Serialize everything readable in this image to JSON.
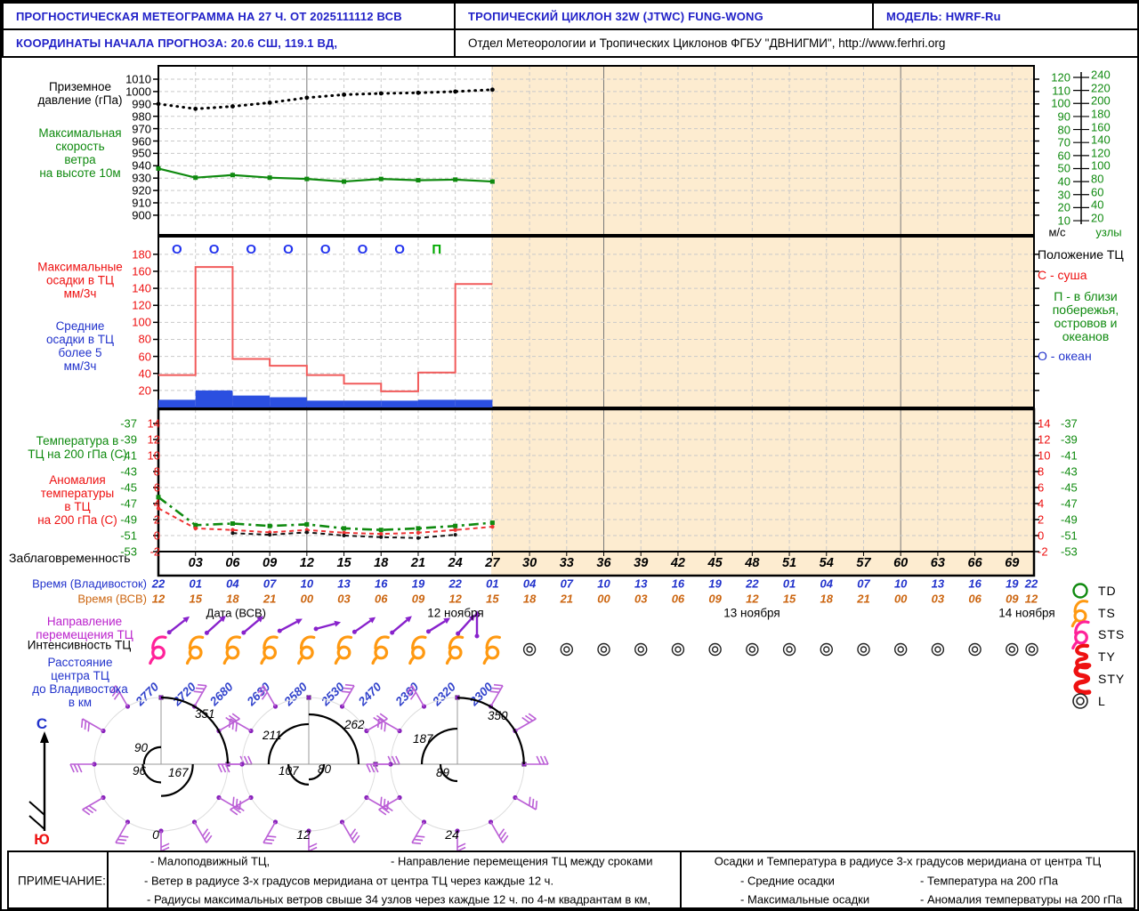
{
  "header": {
    "title": "ПРОГНОСТИЧЕСКАЯ МЕТЕОГРАММА НА 27 Ч. ОТ 2025111112 ВСВ",
    "cyclone": "ТРОПИЧЕСКИЙ ЦИКЛОН  32W (JTWC)  FUNG-WONG",
    "model": "МОДЕЛЬ:   HWRF-Ru",
    "coords": "КООРДИНАТЫ НАЧАЛА ПРОГНОЗА: 20.6  СШ,   119.1  ВД,",
    "org": "Отдел Метеорологии и Тропических Циклонов ФГБУ \"ДВНИГМИ\",  http://www.ferhri.org"
  },
  "left_labels": {
    "pressure": "Приземное\nдавление (гПа)",
    "wind": "Максимальная\nскорость\nветра\nна высоте 10м",
    "max_precip": "Максимальные\nосадки в ТЦ\nмм/3ч",
    "mean_precip": "Средние\nосадки в ТЦ\nболее 5\nмм/3ч",
    "temp": "Температура в\nТЦ на 200 гПа (С)",
    "anomaly": "Аномалия\nтемпературы\nв ТЦ\nна 200 гПа (С)",
    "lead": "Заблаговременность",
    "direction": "Направление\nперемещения ТЦ",
    "intensity": "Интенсивность ТЦ",
    "distance": "Расстояние\nцентра ТЦ\nдо Владивостока\nв км",
    "compass_north": "С",
    "compass_south": "Ю"
  },
  "right_labels": {
    "ms_unit": "м/с",
    "knots_unit": "узлы",
    "position_title": "Положение ТЦ",
    "pos_land": "С - суша",
    "pos_coast": "П - в близи\nпобережья,\nостровов и\nокеанов",
    "pos_ocean": "О - океан",
    "intensity_codes": [
      "TD",
      "TS",
      "STS",
      "TY",
      "STY",
      "L"
    ]
  },
  "timeline": {
    "lead_hours": [
      "03",
      "06",
      "09",
      "12",
      "15",
      "18",
      "21",
      "24",
      "27",
      "30",
      "33",
      "36",
      "39",
      "42",
      "45",
      "48",
      "51",
      "54",
      "57",
      "60",
      "63",
      "66",
      "69"
    ],
    "vlad_label": "Время (Владивосток)",
    "vlad_times": [
      "22",
      "01",
      "04",
      "07",
      "10",
      "13",
      "16",
      "19",
      "22",
      "01",
      "04",
      "07",
      "10",
      "13",
      "16",
      "19",
      "22",
      "01",
      "04",
      "07",
      "10",
      "13",
      "16",
      "19",
      "22"
    ],
    "utc_label": "Время (ВСВ)",
    "utc_times": [
      "12",
      "15",
      "18",
      "21",
      "00",
      "03",
      "06",
      "09",
      "12",
      "15",
      "18",
      "21",
      "00",
      "03",
      "06",
      "09",
      "12",
      "15",
      "18",
      "21",
      "00",
      "03",
      "06",
      "09",
      "12"
    ],
    "date_label": "Дата (ВСВ)",
    "dates": [
      "12 ноября",
      "13 ноября",
      "14 ноября"
    ]
  },
  "chart_data": [
    {
      "type": "line",
      "title": "Приземное давление и максимальная скорость ветра на высоте 10 м",
      "x_hours": [
        0,
        3,
        6,
        9,
        12,
        15,
        18,
        21,
        24,
        27
      ],
      "series": [
        {
          "name": "Приземное давление (гПа)",
          "color": "#000000",
          "style": "dotted",
          "values": [
            990,
            986,
            988,
            991,
            995,
            997.5,
            998.5,
            999,
            1000,
            1001.5
          ]
        },
        {
          "name": "Максимальная скорость ветра на высоте 10м (м/с)",
          "color": "#0f8a0f",
          "style": "solid",
          "values": [
            50,
            43,
            45,
            43,
            42,
            40,
            42,
            41,
            41.5,
            40
          ]
        }
      ],
      "pressure_ticks": [
        1010,
        1000,
        990,
        980,
        970,
        960,
        950,
        940,
        930,
        920,
        910,
        900
      ],
      "ms_ticks": [
        120,
        110,
        100,
        90,
        80,
        70,
        60,
        50,
        40,
        30,
        20,
        10
      ],
      "knot_ticks": [
        240,
        220,
        200,
        180,
        160,
        140,
        120,
        100,
        80,
        60,
        40,
        20
      ]
    },
    {
      "type": "bar",
      "title": "Осадки в ТЦ, мм/3ч",
      "interval_start_hours": [
        0,
        3,
        6,
        9,
        12,
        15,
        18,
        21,
        24
      ],
      "series": [
        {
          "name": "Максимальные осадки",
          "color": "#f15b5b",
          "style": "step",
          "values": [
            38,
            165,
            57,
            49,
            38,
            28,
            19,
            41,
            145
          ]
        },
        {
          "name": "Средние осадки",
          "color": "#2b4fe0",
          "style": "bar",
          "values": [
            9,
            20,
            14,
            12,
            8,
            8,
            8,
            9,
            9
          ]
        }
      ],
      "precip_ticks": [
        180,
        160,
        140,
        120,
        100,
        80,
        60,
        40,
        20
      ],
      "position_letters": [
        {
          "hour": 1.5,
          "letter": "О",
          "color": "#2233ee"
        },
        {
          "hour": 4.5,
          "letter": "О",
          "color": "#2233ee"
        },
        {
          "hour": 7.5,
          "letter": "О",
          "color": "#2233ee"
        },
        {
          "hour": 10.5,
          "letter": "О",
          "color": "#2233ee"
        },
        {
          "hour": 13.5,
          "letter": "О",
          "color": "#2233ee"
        },
        {
          "hour": 16.5,
          "letter": "О",
          "color": "#2233ee"
        },
        {
          "hour": 19.5,
          "letter": "О",
          "color": "#2233ee"
        },
        {
          "hour": 22.5,
          "letter": "П",
          "color": "#00aa00"
        }
      ]
    },
    {
      "type": "line",
      "title": "Температура и аномалия температуры в ТЦ на 200 гПа",
      "x_hours": [
        0,
        3,
        6,
        9,
        12,
        15,
        18,
        21,
        24,
        27
      ],
      "series": [
        {
          "name": "Температура на 200 гПа (С)",
          "color": "#0f8a0f",
          "style": "dashdot",
          "axis": "temp",
          "values": [
            -46.2,
            -49.7,
            -49.5,
            -49.8,
            -49.6,
            -50.1,
            -50.3,
            -50.1,
            -49.8,
            -49.4
          ]
        },
        {
          "name": "Аномалия температуры на 200 гПа (С)",
          "color": "#ee3333",
          "style": "dashed",
          "axis": "anom",
          "values": [
            3.4,
            0.9,
            0.7,
            0.4,
            0.7,
            0.35,
            0.2,
            0.35,
            0.7,
            1.1
          ]
        },
        {
          "name": "чёрная пунктирная",
          "color": "#111111",
          "style": "dashed",
          "axis": "anom",
          "x_hours": [
            6,
            9,
            12,
            15,
            18,
            21,
            24
          ],
          "values": [
            0.3,
            0.1,
            0.4,
            0,
            -0.2,
            -0.3,
            0.1
          ]
        }
      ],
      "temp_ticks": [
        -37,
        -39,
        -41,
        -43,
        -45,
        -47,
        -49,
        -51,
        -53
      ],
      "anom_ticks": [
        14,
        12,
        10,
        8,
        6,
        4,
        2,
        0,
        -2
      ]
    }
  ],
  "track": {
    "hours": [
      0,
      3,
      6,
      9,
      12,
      15,
      18,
      21,
      24,
      27
    ],
    "intensity": [
      "STS",
      "TS",
      "TS",
      "TS",
      "TS",
      "TS",
      "TS",
      "TS",
      "TS",
      "TS"
    ],
    "distance_km": [
      2770,
      2720,
      2680,
      2630,
      2580,
      2530,
      2470,
      2360,
      2320,
      2300
    ],
    "move_dir_deg": [
      38,
      42,
      40,
      28,
      15,
      35,
      40,
      32,
      48,
      90
    ],
    "low_hours": [
      30,
      33,
      36,
      39,
      42,
      45,
      48,
      51,
      54,
      57,
      60,
      63,
      66,
      69
    ]
  },
  "wind_roses": {
    "times": [
      "0",
      "12",
      "24"
    ],
    "quadrant_radii_km": [
      {
        "NE": 351,
        "NW": 90,
        "SW": 96,
        "SE": 167
      },
      {
        "NE": 262,
        "NW": 211,
        "SW": 107,
        "SE": 80
      },
      {
        "NE": 350,
        "NW": 187,
        "SW": 89,
        "SE": null
      }
    ]
  },
  "notes": {
    "label": "ПРИМЕЧАНИЕ:",
    "slow_tc": "- Малоподвижный ТЦ,",
    "move_dir": "- Направление перемещения ТЦ между сроками",
    "wind_barb": "- Ветер в радиусе 3-х градусов меридиана от центра ТЦ через каждые 12 ч.",
    "radii": "- Радиусы максимальных ветров свыше 34 узлов через каждые 12 ч. по 4-м квадрантам в км,"
  },
  "precip_legend": {
    "title": "Осадки и Температура в радиусе 3-х градусов меридиана от центра ТЦ",
    "mean": "- Средние осадки",
    "max": "- Максимальные осадки",
    "temp": "- Температура на 200 гПа",
    "anom": "- Аномалия темперватуры на 200 гПа"
  },
  "colors": {
    "header_blue": "#2121c8",
    "forecast_shade": "#fdecd0",
    "sts_pink": "#ff2299",
    "ts_orange": "#ff9911",
    "barb_purple": "#bb5fd6",
    "arrow_purple": "#8822cc"
  }
}
